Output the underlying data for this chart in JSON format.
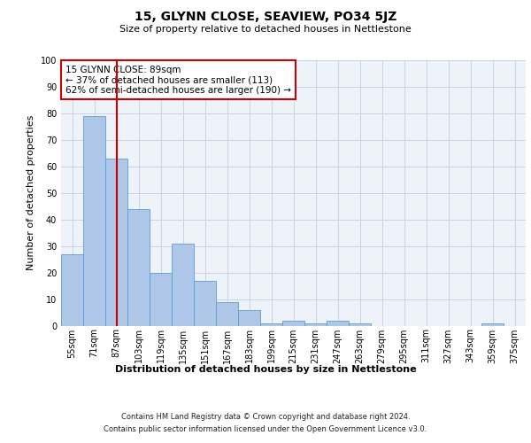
{
  "title": "15, GLYNN CLOSE, SEAVIEW, PO34 5JZ",
  "subtitle": "Size of property relative to detached houses in Nettlestone",
  "xlabel": "Distribution of detached houses by size in Nettlestone",
  "ylabel": "Number of detached properties",
  "categories": [
    "55sqm",
    "71sqm",
    "87sqm",
    "103sqm",
    "119sqm",
    "135sqm",
    "151sqm",
    "167sqm",
    "183sqm",
    "199sqm",
    "215sqm",
    "231sqm",
    "247sqm",
    "263sqm",
    "279sqm",
    "295sqm",
    "311sqm",
    "327sqm",
    "343sqm",
    "359sqm",
    "375sqm"
  ],
  "values": [
    27,
    79,
    63,
    44,
    20,
    31,
    17,
    9,
    6,
    1,
    2,
    1,
    2,
    1,
    0,
    0,
    0,
    0,
    0,
    1,
    0
  ],
  "bar_color": "#aec6e8",
  "bar_edge_color": "#5a9fd4",
  "vline_x_idx": 2,
  "vline_color": "#cc0000",
  "annotation_line1": "15 GLYNN CLOSE: 89sqm",
  "annotation_line2": "← 37% of detached houses are smaller (113)",
  "annotation_line3": "62% of semi-detached houses are larger (190) →",
  "annotation_box_color": "#ffffff",
  "annotation_box_edge": "#cc0000",
  "ylim": [
    0,
    100
  ],
  "yticks": [
    0,
    10,
    20,
    30,
    40,
    50,
    60,
    70,
    80,
    90,
    100
  ],
  "footer_line1": "Contains HM Land Registry data © Crown copyright and database right 2024.",
  "footer_line2": "Contains public sector information licensed under the Open Government Licence v3.0.",
  "bg_color": "#eef2f9",
  "grid_color": "#c8d4e8",
  "title_fontsize": 10,
  "subtitle_fontsize": 8,
  "ylabel_fontsize": 8,
  "xlabel_fontsize": 8,
  "tick_fontsize": 7,
  "footer_fontsize": 6
}
